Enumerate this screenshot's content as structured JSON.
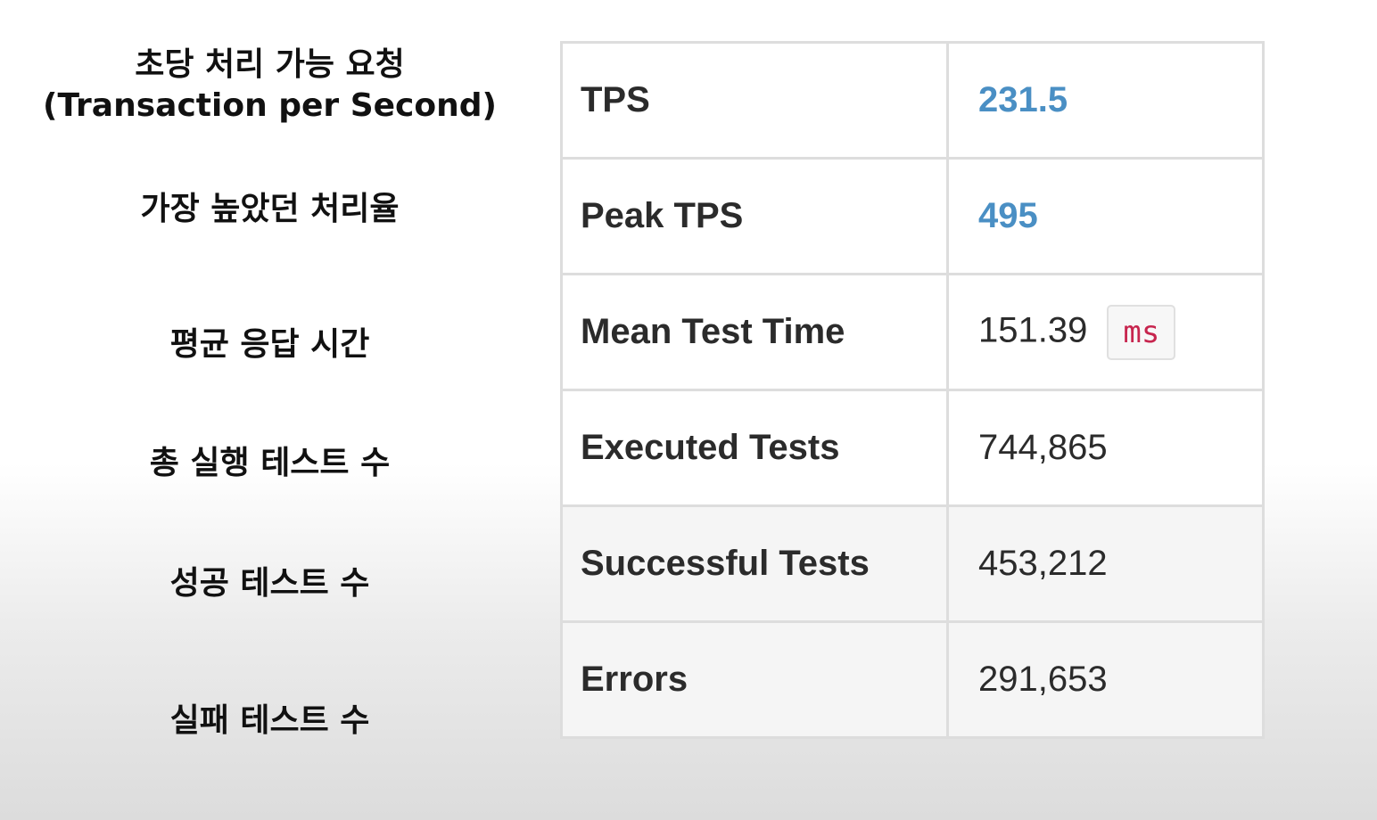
{
  "annotations": [
    {
      "line1": "초당 처리 가능 요청",
      "line2": "(Transaction per Second)"
    },
    {
      "line1": "가장 높았던 처리율"
    },
    {
      "line1": "평균 응답 시간"
    },
    {
      "line1": "총 실행 테스트 수"
    },
    {
      "line1": "성공 테스트 수"
    },
    {
      "line1": "실패 테스트 수"
    }
  ],
  "stats": [
    {
      "metric": "TPS",
      "value": "231.5",
      "accent_color": "#4a8fc4"
    },
    {
      "metric": "Peak TPS",
      "value": "495",
      "accent_color": "#4a8fc4"
    },
    {
      "metric": "Mean Test Time",
      "value": "151.39",
      "unit": "ms"
    },
    {
      "metric": "Executed Tests",
      "value": "744,865"
    },
    {
      "metric": "Successful Tests",
      "value": "453,212"
    },
    {
      "metric": "Errors",
      "value": "291,653"
    }
  ]
}
